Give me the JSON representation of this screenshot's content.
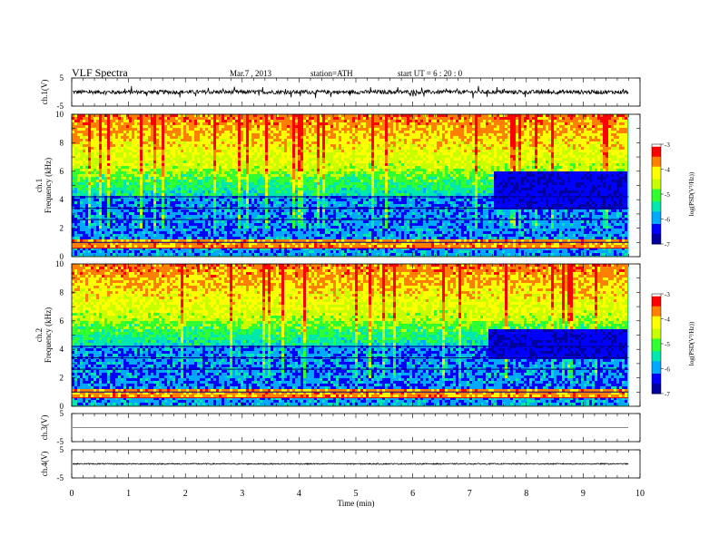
{
  "header": {
    "title": "VLF  Spectra",
    "date": "Mar.7  , 2013",
    "station": "station=ATH",
    "start": "start  UT =   6  : 20 : 0"
  },
  "chart_data": [
    {
      "type": "line",
      "panel": "ch1-waveform",
      "ylabel": "ch.1(V)",
      "ylim": [
        -5,
        5
      ],
      "yticks": [
        5,
        -5
      ],
      "xlim": [
        0,
        10
      ],
      "baseline": 0,
      "amplitude": 1.4
    },
    {
      "type": "heatmap",
      "panel": "ch1-spectrogram",
      "ylabel": "ch.1\nFrequency  (kHz)",
      "ylabel_lines": [
        "ch.1",
        "Frequency  (kHz)"
      ],
      "ylim": [
        0,
        10
      ],
      "yticks": [
        0,
        2,
        4,
        6,
        8,
        10
      ],
      "xlim": [
        0,
        10
      ],
      "data_end_min": 9.8,
      "dark_patch": {
        "x": [
          7.4,
          9.8
        ],
        "freq_khz": [
          3.5,
          6
        ]
      },
      "colorbar": {
        "label": "log(PSD(V²/Hz))",
        "range": [
          -7,
          -3
        ],
        "ticks": [
          -3,
          -4,
          -5,
          -6,
          -7
        ]
      }
    },
    {
      "type": "heatmap",
      "panel": "ch2-spectrogram",
      "ylabel": "ch.2\nFrequency  (kHz)",
      "ylabel_lines": [
        "ch.2",
        "Frequency  (kHz)"
      ],
      "ylim": [
        0,
        10
      ],
      "yticks": [
        0,
        2,
        4,
        6,
        8,
        10
      ],
      "xlim": [
        0,
        10
      ],
      "data_end_min": 9.8,
      "dark_patch": {
        "x": [
          7.3,
          9.8
        ],
        "freq_khz": [
          3.5,
          5.5
        ]
      },
      "colorbar": {
        "label": "log(PSD(V²/Hz))",
        "range": [
          -7,
          -3
        ],
        "ticks": [
          -3,
          -4,
          -5,
          -6,
          -7
        ]
      }
    },
    {
      "type": "line",
      "panel": "ch3-waveform",
      "ylabel": "ch.3(V)",
      "ylim": [
        -5,
        5
      ],
      "yticks": [
        5,
        -5
      ],
      "xlim": [
        0,
        10
      ],
      "baseline": 0,
      "amplitude": 0.15
    },
    {
      "type": "line",
      "panel": "ch4-waveform",
      "ylabel": "ch.4(V)",
      "ylim": [
        -5,
        5
      ],
      "yticks": [
        5,
        -5
      ],
      "xlim": [
        0,
        10
      ],
      "baseline": 0,
      "amplitude": 0.4
    }
  ],
  "x_axis": {
    "label": "Time  (min)",
    "ticks": [
      0,
      1,
      2,
      3,
      4,
      5,
      6,
      7,
      8,
      9,
      10
    ]
  },
  "colors": {
    "colormap": [
      "#0000a0",
      "#0000ff",
      "#00a8ff",
      "#00e8b0",
      "#30ff30",
      "#c8ff00",
      "#ffff00",
      "#ff8000",
      "#ff0000",
      "#ffffff"
    ]
  }
}
